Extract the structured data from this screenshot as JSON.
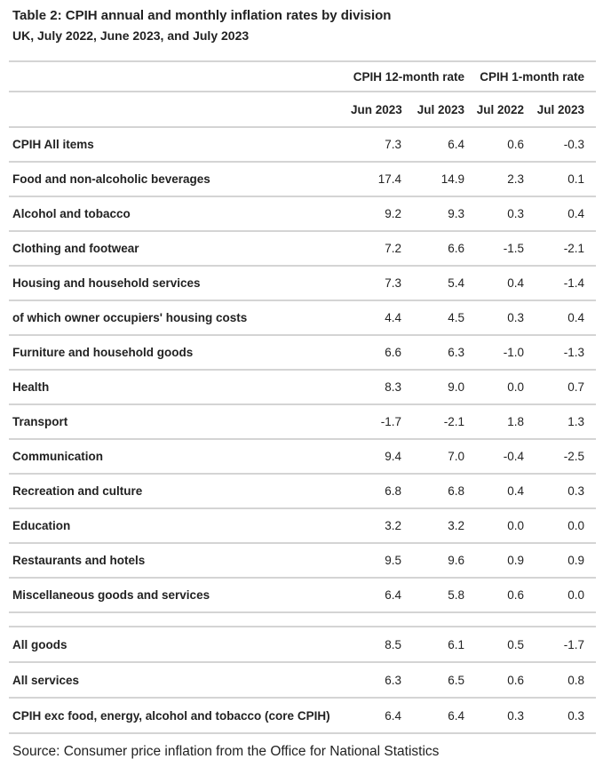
{
  "header": {
    "title": "Table 2: CPIH annual and monthly inflation rates by division",
    "subtitle": "UK, July 2022, June 2023, and July 2023"
  },
  "table": {
    "column_groups": [
      {
        "label": "CPIH 12-month rate"
      },
      {
        "label": "CPIH 1-month rate"
      }
    ],
    "columns": [
      "Jun 2023",
      "Jul 2023",
      "Jul 2022",
      "Jul 2023"
    ],
    "rows": [
      {
        "label": "CPIH All items",
        "values": [
          "7.3",
          "6.4",
          "0.6",
          "-0.3"
        ]
      },
      {
        "label": "Food and non-alcoholic beverages",
        "values": [
          "17.4",
          "14.9",
          "2.3",
          "0.1"
        ]
      },
      {
        "label": "Alcohol and tobacco",
        "values": [
          "9.2",
          "9.3",
          "0.3",
          "0.4"
        ]
      },
      {
        "label": "Clothing and footwear",
        "values": [
          "7.2",
          "6.6",
          "-1.5",
          "-2.1"
        ]
      },
      {
        "label": "Housing and household services",
        "values": [
          "7.3",
          "5.4",
          "0.4",
          "-1.4"
        ]
      },
      {
        "label": "of which owner occupiers' housing costs",
        "values": [
          "4.4",
          "4.5",
          "0.3",
          "0.4"
        ]
      },
      {
        "label": "Furniture and household goods",
        "values": [
          "6.6",
          "6.3",
          "-1.0",
          "-1.3"
        ]
      },
      {
        "label": "Health",
        "values": [
          "8.3",
          "9.0",
          "0.0",
          "0.7"
        ]
      },
      {
        "label": "Transport",
        "values": [
          "-1.7",
          "-2.1",
          "1.8",
          "1.3"
        ]
      },
      {
        "label": "Communication",
        "values": [
          "9.4",
          "7.0",
          "-0.4",
          "-2.5"
        ]
      },
      {
        "label": "Recreation and culture",
        "values": [
          "6.8",
          "6.8",
          "0.4",
          "0.3"
        ]
      },
      {
        "label": "Education",
        "values": [
          "3.2",
          "3.2",
          "0.0",
          "0.0"
        ]
      },
      {
        "label": "Restaurants and hotels",
        "values": [
          "9.5",
          "9.6",
          "0.9",
          "0.9"
        ]
      },
      {
        "label": "Miscellaneous goods and services",
        "values": [
          "6.4",
          "5.8",
          "0.6",
          "0.0"
        ]
      }
    ],
    "summary_rows": [
      {
        "label": "All goods",
        "values": [
          "8.5",
          "6.1",
          "0.5",
          "-1.7"
        ]
      },
      {
        "label": "All services",
        "values": [
          "6.3",
          "6.5",
          "0.6",
          "0.8"
        ]
      },
      {
        "label": "CPIH exc food, energy, alcohol and tobacco (core CPIH)",
        "values": [
          "6.4",
          "6.4",
          "0.3",
          "0.3"
        ]
      }
    ]
  },
  "footer": {
    "source": "Source: Consumer price inflation from the Office for National Statistics"
  },
  "colors": {
    "text": "#222222",
    "rule": "#d4d4d4",
    "background": "#ffffff"
  },
  "chart_data": {
    "type": "table",
    "title": "Table 2: CPIH annual and monthly inflation rates by division",
    "subtitle": "UK, July 2022, June 2023, and July 2023",
    "column_groups": [
      "CPIH 12-month rate",
      "CPIH 12-month rate",
      "CPIH 1-month rate",
      "CPIH 1-month rate"
    ],
    "columns": [
      "Jun 2023",
      "Jul 2023",
      "Jul 2022",
      "Jul 2023"
    ],
    "series": [
      {
        "name": "CPIH All items",
        "values": [
          7.3,
          6.4,
          0.6,
          -0.3
        ]
      },
      {
        "name": "Food and non-alcoholic beverages",
        "values": [
          17.4,
          14.9,
          2.3,
          0.1
        ]
      },
      {
        "name": "Alcohol and tobacco",
        "values": [
          9.2,
          9.3,
          0.3,
          0.4
        ]
      },
      {
        "name": "Clothing and footwear",
        "values": [
          7.2,
          6.6,
          -1.5,
          -2.1
        ]
      },
      {
        "name": "Housing and household services",
        "values": [
          7.3,
          5.4,
          0.4,
          -1.4
        ]
      },
      {
        "name": "of which owner occupiers' housing costs",
        "values": [
          4.4,
          4.5,
          0.3,
          0.4
        ]
      },
      {
        "name": "Furniture and household goods",
        "values": [
          6.6,
          6.3,
          -1.0,
          -1.3
        ]
      },
      {
        "name": "Health",
        "values": [
          8.3,
          9.0,
          0.0,
          0.7
        ]
      },
      {
        "name": "Transport",
        "values": [
          -1.7,
          -2.1,
          1.8,
          1.3
        ]
      },
      {
        "name": "Communication",
        "values": [
          9.4,
          7.0,
          -0.4,
          -2.5
        ]
      },
      {
        "name": "Recreation and culture",
        "values": [
          6.8,
          6.8,
          0.4,
          0.3
        ]
      },
      {
        "name": "Education",
        "values": [
          3.2,
          3.2,
          0.0,
          0.0
        ]
      },
      {
        "name": "Restaurants and hotels",
        "values": [
          9.5,
          9.6,
          0.9,
          0.9
        ]
      },
      {
        "name": "Miscellaneous goods and services",
        "values": [
          6.4,
          5.8,
          0.6,
          0.0
        ]
      },
      {
        "name": "All goods",
        "values": [
          8.5,
          6.1,
          0.5,
          -1.7
        ]
      },
      {
        "name": "All services",
        "values": [
          6.3,
          6.5,
          0.6,
          0.8
        ]
      },
      {
        "name": "CPIH exc food, energy, alcohol and tobacco (core CPIH)",
        "values": [
          6.4,
          6.4,
          0.3,
          0.3
        ]
      }
    ]
  }
}
